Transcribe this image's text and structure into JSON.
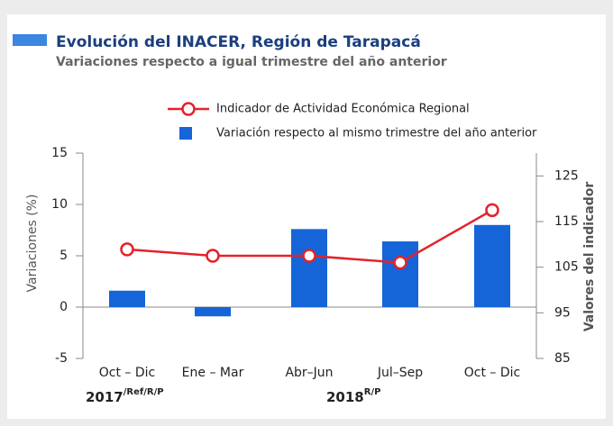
{
  "chart_data": {
    "type": "combo",
    "title": "Evolución del INACER, Región de Tarapacá",
    "subtitle": "Variaciones respecto a igual trimestre del año anterior",
    "categories": [
      "Oct – Dic",
      "Ene – Mar",
      "Abr–Jun",
      "Jul–Sep",
      "Oct – Dic"
    ],
    "group_labels": [
      {
        "text": "2017",
        "sup": "/Ref/R/P"
      },
      {
        "text": "2018",
        "sup": "R/P"
      }
    ],
    "series": [
      {
        "name": "Indicador de Actividad Económica Regional",
        "type": "line",
        "axis": "y2",
        "color": "#e3222b",
        "values": [
          108.9,
          107.5,
          107.5,
          106,
          117.5
        ]
      },
      {
        "name": "Variación respecto al mismo trimestre del año anterior",
        "type": "bar",
        "axis": "y",
        "color": "#1565d8",
        "values": [
          1.6,
          -0.9,
          7.6,
          6.4,
          8.0
        ]
      }
    ],
    "ylabel": "Variaciones (%)",
    "y2label": "Valores del indicador",
    "ylim": [
      -5,
      15
    ],
    "yticks": [
      -5,
      0,
      5,
      10,
      15
    ],
    "y2lim": [
      85,
      130
    ],
    "y2ticks": [
      85,
      95,
      105,
      115,
      125
    ]
  }
}
